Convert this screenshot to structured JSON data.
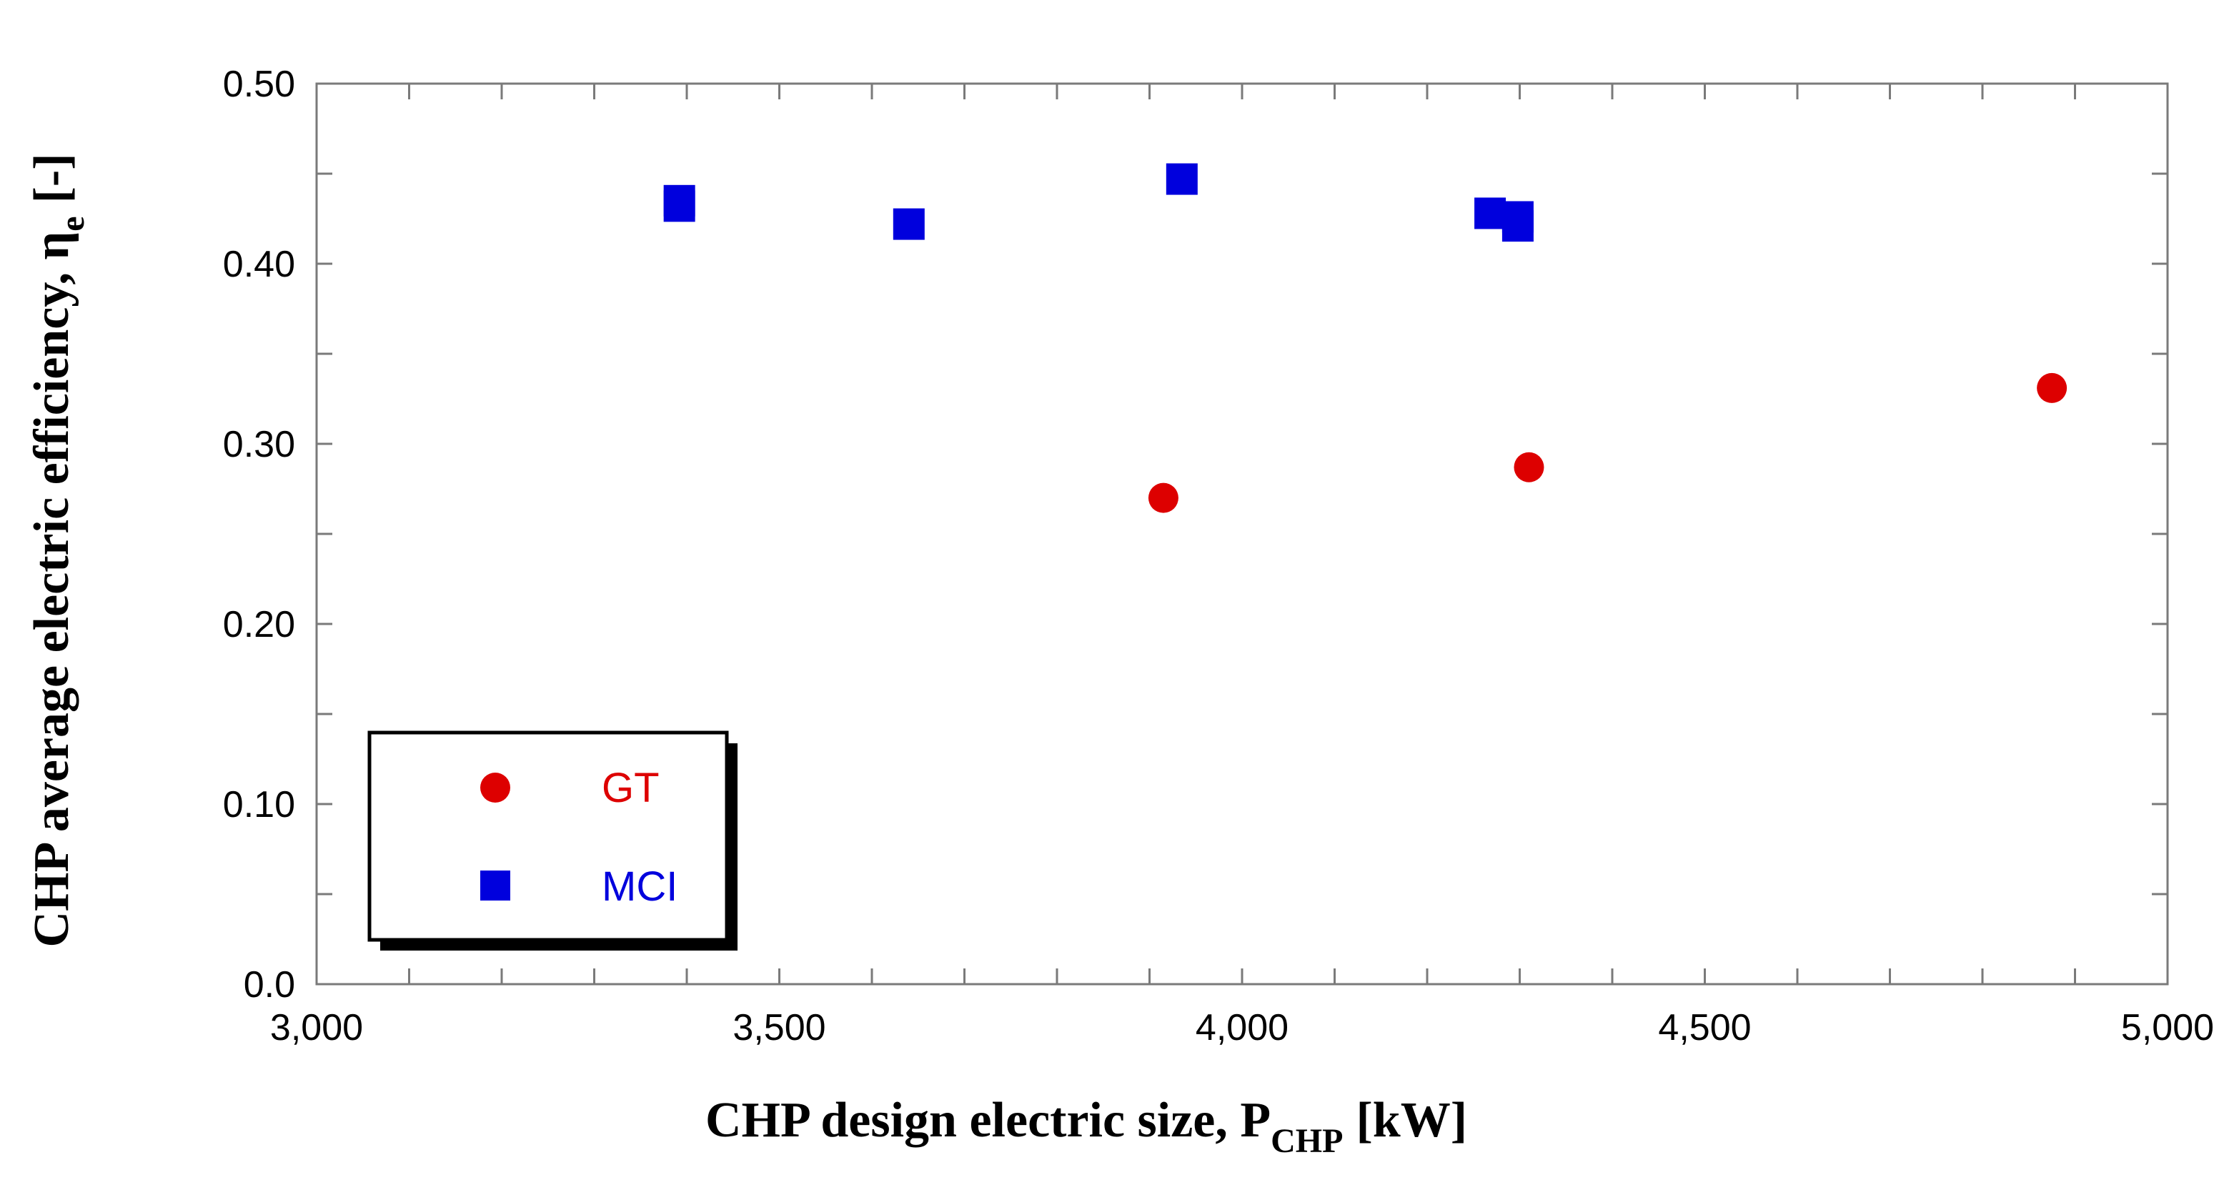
{
  "chart_data": {
    "type": "scatter",
    "title": "",
    "xlabel": "CHP design electric size, P",
    "xlabel_sub": "CHP",
    "xlabel_unit": "[kW]",
    "ylabel": "CHP average electric efficiency, η",
    "ylabel_sub": "e",
    "ylabel_unit": "[-]",
    "xlim": [
      3000,
      5000
    ],
    "ylim": [
      0,
      0.5
    ],
    "xticks": [
      3000,
      3500,
      4000,
      4500,
      5000
    ],
    "xtick_labels": [
      "3,000",
      "3,500",
      "4,000",
      "4,500",
      "5,000"
    ],
    "x_minor_step": 100,
    "yticks": [
      0,
      0.1,
      0.2,
      0.3,
      0.4,
      0.5
    ],
    "ytick_labels": [
      "0.0",
      "0.10",
      "0.20",
      "0.30",
      "0.40",
      "0.50"
    ],
    "y_minor_step": 0.05,
    "grid": false,
    "legend_position": "bottom-left",
    "series": [
      {
        "name": "GT",
        "marker": "circle",
        "color": "#dd0000",
        "points": [
          {
            "x": 3915,
            "y": 0.27
          },
          {
            "x": 4310,
            "y": 0.287
          },
          {
            "x": 4875,
            "y": 0.331
          }
        ]
      },
      {
        "name": "MCI",
        "marker": "square",
        "color": "#0000dd",
        "points": [
          {
            "x": 3392,
            "y": 0.435
          },
          {
            "x": 3392,
            "y": 0.432
          },
          {
            "x": 3640,
            "y": 0.422
          },
          {
            "x": 3935,
            "y": 0.447
          },
          {
            "x": 4268,
            "y": 0.428
          },
          {
            "x": 4298,
            "y": 0.426
          },
          {
            "x": 4298,
            "y": 0.421
          }
        ]
      }
    ]
  }
}
